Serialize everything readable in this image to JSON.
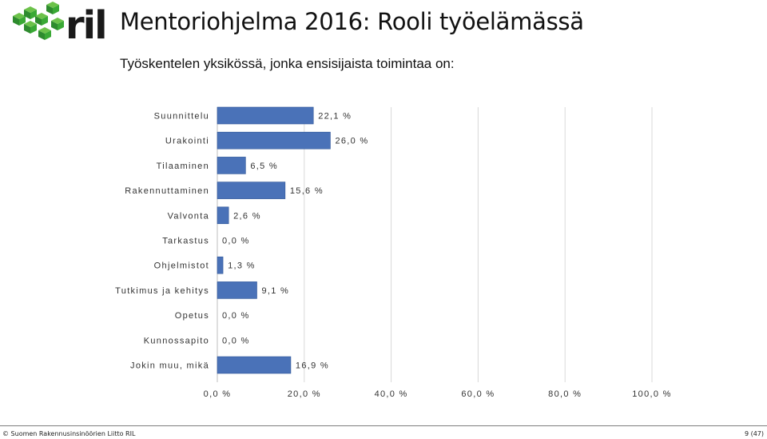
{
  "header": {
    "logo_text": "ril",
    "title": "Mentoriohjelma 2016: Rooli työelämässä",
    "subtitle": "Työskentelen yksikössä, jonka ensisijaista toimintaa on:"
  },
  "colors": {
    "bar": "#4a72b8",
    "bar_dark": "#2f5597",
    "logo_green": "#3aa935",
    "logo_dark": "#1a1a1a"
  },
  "chart_data": {
    "type": "bar",
    "orientation": "horizontal",
    "categories": [
      "Suunnittelu",
      "Urakointi",
      "Tilaaminen",
      "Rakennuttaminen",
      "Valvonta",
      "Tarkastus",
      "Ohjelmistot",
      "Tutkimus ja kehitys",
      "Opetus",
      "Kunnossapito",
      "Jokin muu, mikä"
    ],
    "values": [
      22.1,
      26.0,
      6.5,
      15.6,
      2.6,
      0.0,
      1.3,
      9.1,
      0.0,
      0.0,
      16.9
    ],
    "value_labels": [
      "22,1 %",
      "26,0 %",
      "6,5 %",
      "15,6 %",
      "2,6 %",
      "0,0 %",
      "1,3 %",
      "9,1 %",
      "0,0 %",
      "0,0 %",
      "16,9 %"
    ],
    "xlim": [
      0,
      100
    ],
    "x_ticks": [
      0,
      20,
      40,
      60,
      80,
      100
    ],
    "x_tick_labels": [
      "0,0 %",
      "20,0 %",
      "40,0 %",
      "60,0 %",
      "80,0 %",
      "100,0 %"
    ],
    "grid": true,
    "legend": "none"
  },
  "footer": {
    "copyright": "© Suomen Rakennusinsinöörien Liitto RIL",
    "page": "9 (47)"
  }
}
